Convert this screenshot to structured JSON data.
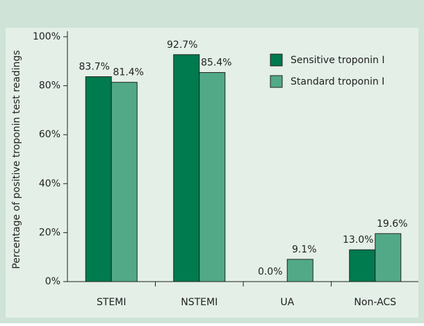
{
  "chart_data": {
    "type": "bar",
    "y_label": "Percentage of positive troponin test readings",
    "categories": [
      "STEMI",
      "NSTEMI",
      "UA",
      "Non-ACS"
    ],
    "series": [
      {
        "name": "Sensitive troponin I",
        "color": "#007a4f",
        "values": [
          83.7,
          92.7,
          0.0,
          13.0
        ],
        "value_labels": [
          "83.7%",
          "92.7%",
          "0.0%",
          "13.0%"
        ]
      },
      {
        "name": "Standard troponin I",
        "color": "#52a988",
        "values": [
          81.4,
          85.4,
          9.1,
          19.6
        ],
        "value_labels": [
          "81.4%",
          "85.4%",
          "9.1%",
          "19.6%"
        ]
      }
    ],
    "ylim": [
      0,
      100
    ],
    "yticks": [
      {
        "value": 0,
        "label": "0%"
      },
      {
        "value": 20,
        "label": "20%"
      },
      {
        "value": 40,
        "label": "40%"
      },
      {
        "value": 60,
        "label": "60%"
      },
      {
        "value": 80,
        "label": "80%"
      },
      {
        "value": 100,
        "label": "100%"
      }
    ],
    "legend": "top-right"
  }
}
